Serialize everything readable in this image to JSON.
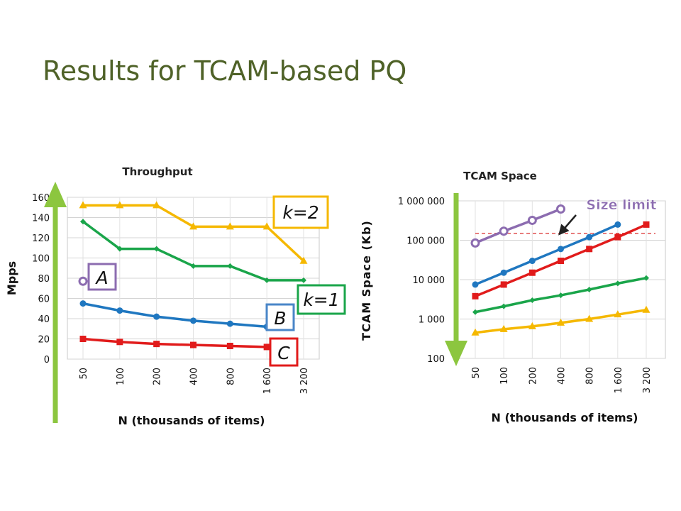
{
  "slide": {
    "title": "Results for TCAM-based PQ"
  },
  "colors": {
    "yellow": "#f5b800",
    "green": "#1aa54a",
    "blue": "#1f77c0",
    "red": "#e11b1b",
    "purple": "#8c6cb0",
    "arrow": "#8cc63f",
    "title": "#4f6228"
  },
  "callouts": {
    "k2": {
      "label": "k=2",
      "color": "#f5b800"
    },
    "k1": {
      "label": "k=1",
      "color": "#1aa54a"
    },
    "A": {
      "label": "A",
      "color": "#8c6cb0"
    },
    "B": {
      "label": "B",
      "color": "#4a86c8"
    },
    "C": {
      "label": "C",
      "color": "#e11b1b"
    },
    "size_limit": {
      "label": "Size limit",
      "color": "#8c6cb0"
    }
  },
  "chart_data": [
    {
      "type": "line",
      "title": "Throughput",
      "xlabel": "N (thousands of items)",
      "ylabel": "Mpps",
      "categories": [
        "50",
        "100",
        "200",
        "400",
        "800",
        "1 600",
        "3 200"
      ],
      "ylim": [
        0,
        160
      ],
      "yticks": [
        "0",
        "20",
        "40",
        "60",
        "80",
        "100",
        "120",
        "140",
        "160"
      ],
      "grid": true,
      "series": [
        {
          "color": "#f5b800",
          "marker": "triangle",
          "values": [
            152,
            152,
            152,
            131,
            131,
            131,
            97
          ]
        },
        {
          "color": "#1aa54a",
          "marker": "diamond",
          "values": [
            136,
            109,
            109,
            92,
            92,
            78,
            78
          ]
        },
        {
          "color": "#1f77c0",
          "marker": "circle",
          "values": [
            55,
            48,
            42,
            38,
            35,
            32,
            null
          ]
        },
        {
          "color": "#e11b1b",
          "marker": "square",
          "values": [
            20,
            17,
            15,
            14,
            13,
            12,
            null
          ]
        },
        {
          "color": "#8c6cb0",
          "marker": "open-circle",
          "values": [
            77,
            null,
            null,
            null,
            null,
            null,
            null
          ]
        }
      ]
    },
    {
      "type": "line",
      "title": "TCAM Space",
      "xlabel": "N (thousands of items)",
      "ylabel": "TCAM Space (Kb)",
      "categories": [
        "50",
        "100",
        "200",
        "400",
        "800",
        "1 600",
        "3 200"
      ],
      "yscale": "log",
      "ylim": [
        100,
        1000000
      ],
      "yticks": [
        "100",
        "1 000",
        "10 000",
        "100 000",
        "1 000 000"
      ],
      "grid": true,
      "size_limit": 150000,
      "series": [
        {
          "color": "#8c6cb0",
          "marker": "open-circle",
          "values": [
            85000,
            170000,
            320000,
            620000,
            null,
            null,
            null
          ]
        },
        {
          "color": "#1f77c0",
          "marker": "circle",
          "values": [
            7500,
            15000,
            30000,
            60000,
            120000,
            250000,
            null
          ]
        },
        {
          "color": "#e11b1b",
          "marker": "square",
          "values": [
            3800,
            7500,
            15000,
            30000,
            60000,
            120000,
            250000
          ]
        },
        {
          "color": "#1aa54a",
          "marker": "diamond",
          "values": [
            1500,
            2100,
            3000,
            4000,
            5600,
            8000,
            11000
          ]
        },
        {
          "color": "#f5b800",
          "marker": "triangle",
          "values": [
            450,
            550,
            650,
            800,
            1000,
            1300,
            1700
          ]
        }
      ]
    }
  ]
}
